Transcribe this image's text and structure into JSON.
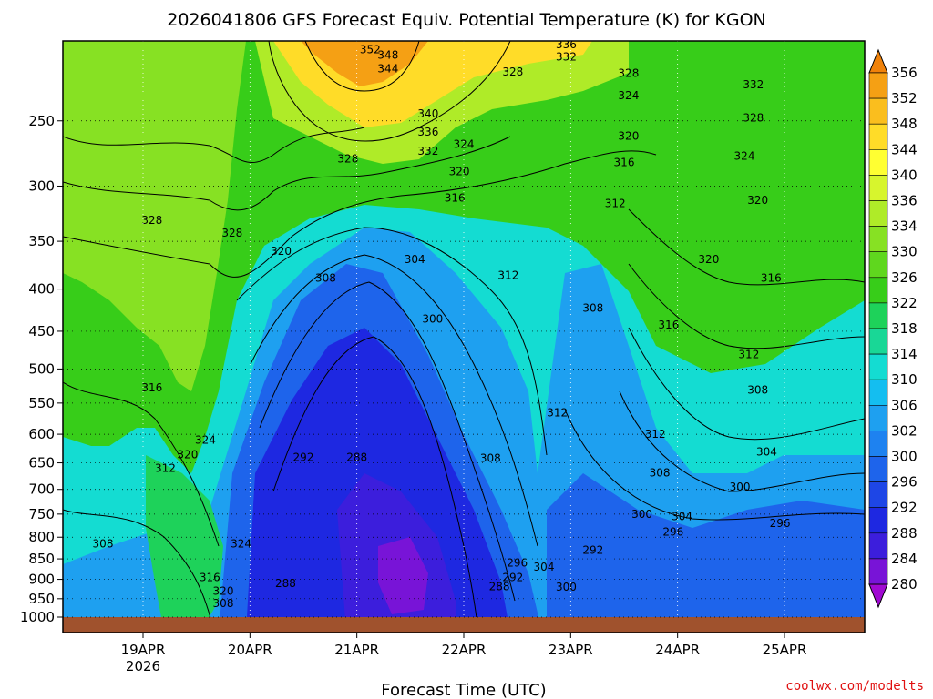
{
  "chart_data": {
    "type": "heatmap",
    "title": "2026041806 GFS Forecast Equiv. Potential Temperature (K) for KGON",
    "xlabel": "Forecast Time (UTC)",
    "ylabel": "",
    "credit": "coolwx.com/modelts",
    "y_scale": "log-pressure",
    "y_range": [
      1000,
      200
    ],
    "y_ticks": [
      250,
      300,
      350,
      400,
      450,
      500,
      550,
      600,
      650,
      700,
      750,
      800,
      850,
      900,
      950,
      1000
    ],
    "x_range": [
      "2026-04-18 06Z",
      "2026-04-25 18Z"
    ],
    "x_ticks": [
      {
        "label": "19APR",
        "sub": "2026",
        "t": 18
      },
      {
        "label": "20APR",
        "sub": "",
        "t": 42
      },
      {
        "label": "21APR",
        "sub": "",
        "t": 66
      },
      {
        "label": "22APR",
        "sub": "",
        "t": 90
      },
      {
        "label": "23APR",
        "sub": "",
        "t": 114
      },
      {
        "label": "24APR",
        "sub": "",
        "t": 138
      },
      {
        "label": "25APR",
        "sub": "",
        "t": 162
      }
    ],
    "grid": true,
    "colorbar": {
      "placement": "right",
      "levels": [
        356,
        352,
        348,
        344,
        340,
        336,
        334,
        330,
        326,
        322,
        318,
        314,
        310,
        306,
        302,
        300,
        296,
        292,
        288,
        284,
        280
      ],
      "colors": [
        "#f0820a",
        "#f5a014",
        "#fabe1e",
        "#ffdc28",
        "#ffff32",
        "#d7f52d",
        "#afeb28",
        "#87e123",
        "#5fd71e",
        "#37cd19",
        "#1ed25a",
        "#19d796",
        "#14dcd2",
        "#14bef0",
        "#1ea0f0",
        "#1e82f0",
        "#1e64eb",
        "#1e46e6",
        "#1e28e1",
        "#3c1edc",
        "#7814d7",
        "#a00ad2"
      ]
    },
    "ground_color": "#a0522d",
    "contour_labels": [
      {
        "v": "352",
        "t": 69,
        "p": 205
      },
      {
        "v": "348",
        "t": 73,
        "p": 208
      },
      {
        "v": "344",
        "t": 73,
        "p": 216
      },
      {
        "v": "340",
        "t": 82,
        "p": 245
      },
      {
        "v": "336",
        "t": 82,
        "p": 258
      },
      {
        "v": "332",
        "t": 82,
        "p": 272
      },
      {
        "v": "336",
        "t": 113,
        "p": 202
      },
      {
        "v": "332",
        "t": 113,
        "p": 209
      },
      {
        "v": "328",
        "t": 101,
        "p": 218
      },
      {
        "v": "328",
        "t": 127,
        "p": 219
      },
      {
        "v": "324",
        "t": 127,
        "p": 233
      },
      {
        "v": "320",
        "t": 127,
        "p": 261
      },
      {
        "v": "316",
        "t": 126,
        "p": 281
      },
      {
        "v": "312",
        "t": 124,
        "p": 315
      },
      {
        "v": "332",
        "t": 155,
        "p": 226
      },
      {
        "v": "328",
        "t": 155,
        "p": 248
      },
      {
        "v": "324",
        "t": 153,
        "p": 276
      },
      {
        "v": "320",
        "t": 156,
        "p": 312
      },
      {
        "v": "324",
        "t": 90,
        "p": 267
      },
      {
        "v": "320",
        "t": 89,
        "p": 288
      },
      {
        "v": "316",
        "t": 88,
        "p": 310
      },
      {
        "v": "328",
        "t": 64,
        "p": 278
      },
      {
        "v": "328",
        "t": 20,
        "p": 330
      },
      {
        "v": "328",
        "t": 38,
        "p": 342
      },
      {
        "v": "320",
        "t": 49,
        "p": 360
      },
      {
        "v": "308",
        "t": 59,
        "p": 388
      },
      {
        "v": "304",
        "t": 79,
        "p": 368
      },
      {
        "v": "312",
        "t": 100,
        "p": 385
      },
      {
        "v": "320",
        "t": 145,
        "p": 368
      },
      {
        "v": "316",
        "t": 159,
        "p": 388
      },
      {
        "v": "308",
        "t": 119,
        "p": 422
      },
      {
        "v": "300",
        "t": 83,
        "p": 435
      },
      {
        "v": "316",
        "t": 136,
        "p": 442
      },
      {
        "v": "312",
        "t": 154,
        "p": 480
      },
      {
        "v": "308",
        "t": 156,
        "p": 530
      },
      {
        "v": "304",
        "t": 158,
        "p": 630
      },
      {
        "v": "300",
        "t": 152,
        "p": 695
      },
      {
        "v": "316",
        "t": 20,
        "p": 527
      },
      {
        "v": "324",
        "t": 32,
        "p": 610
      },
      {
        "v": "320",
        "t": 28,
        "p": 635
      },
      {
        "v": "312",
        "t": 23,
        "p": 660
      },
      {
        "v": "312",
        "t": 111,
        "p": 565
      },
      {
        "v": "312",
        "t": 133,
        "p": 600
      },
      {
        "v": "308",
        "t": 96,
        "p": 642
      },
      {
        "v": "308",
        "t": 134,
        "p": 668
      },
      {
        "v": "292",
        "t": 54,
        "p": 640
      },
      {
        "v": "288",
        "t": 66,
        "p": 640
      },
      {
        "v": "300",
        "t": 130,
        "p": 750
      },
      {
        "v": "304",
        "t": 139,
        "p": 755
      },
      {
        "v": "296",
        "t": 137,
        "p": 788
      },
      {
        "v": "296",
        "t": 161,
        "p": 770
      },
      {
        "v": "292",
        "t": 119,
        "p": 830
      },
      {
        "v": "308",
        "t": 9,
        "p": 815
      },
      {
        "v": "324",
        "t": 40,
        "p": 815
      },
      {
        "v": "316",
        "t": 33,
        "p": 895
      },
      {
        "v": "320",
        "t": 36,
        "p": 930
      },
      {
        "v": "308",
        "t": 36,
        "p": 962
      },
      {
        "v": "288",
        "t": 50,
        "p": 910
      },
      {
        "v": "296",
        "t": 102,
        "p": 860
      },
      {
        "v": "304",
        "t": 108,
        "p": 870
      },
      {
        "v": "292",
        "t": 101,
        "p": 895
      },
      {
        "v": "288",
        "t": 98,
        "p": 918
      },
      {
        "v": "300",
        "t": 113,
        "p": 920
      }
    ]
  }
}
